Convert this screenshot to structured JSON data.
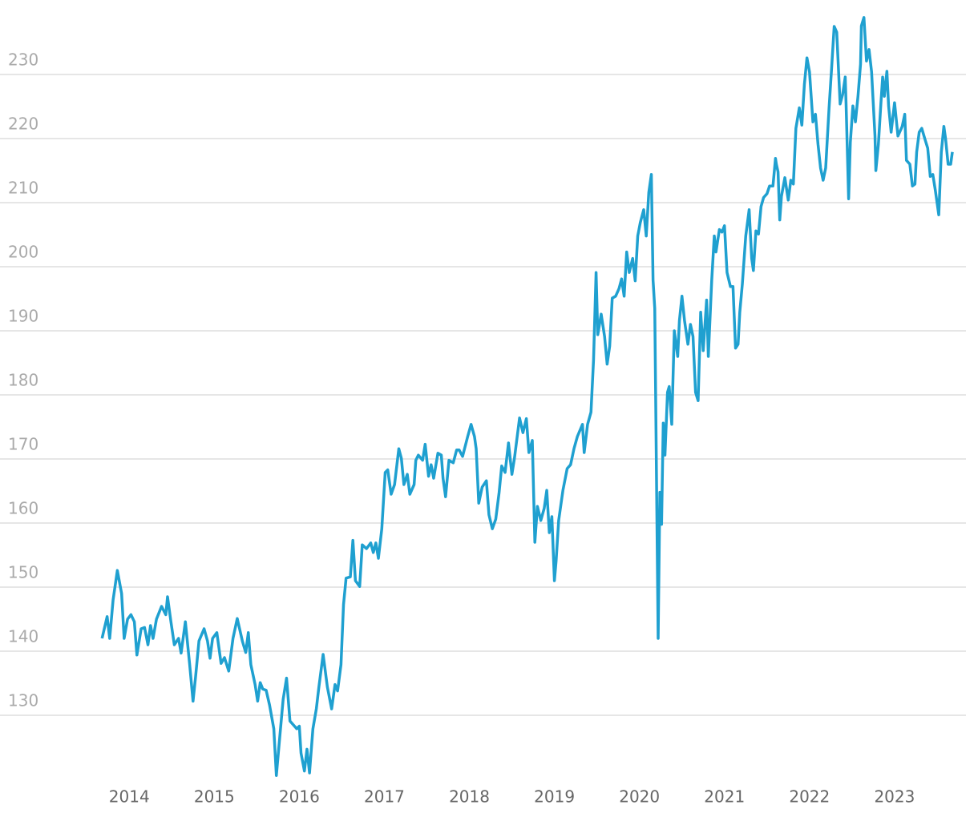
{
  "chart_data": {
    "type": "line",
    "color": "#1fa0d0",
    "grid": true,
    "xlim": [
      2012.48,
      2023.84
    ],
    "ylim": [
      120,
      240
    ],
    "xticks": [
      2014,
      2015,
      2016,
      2017,
      2018,
      2019,
      2020,
      2021,
      2022,
      2023
    ],
    "yticks": [
      130,
      140,
      150,
      160,
      170,
      180,
      190,
      200,
      210,
      220,
      230
    ],
    "x": [
      2013.68,
      2013.74,
      2013.77,
      2013.81,
      2013.86,
      2013.91,
      2013.94,
      2013.98,
      2014.02,
      2014.06,
      2014.09,
      2014.14,
      2014.18,
      2014.22,
      2014.25,
      2014.28,
      2014.32,
      2014.38,
      2014.43,
      2014.45,
      2014.49,
      2014.53,
      2014.58,
      2014.61,
      2014.66,
      2014.71,
      2014.75,
      2014.78,
      2014.82,
      2014.88,
      2014.92,
      2014.95,
      2014.98,
      2015.03,
      2015.08,
      2015.12,
      2015.17,
      2015.22,
      2015.27,
      2015.33,
      2015.37,
      2015.4,
      2015.43,
      2015.48,
      2015.51,
      2015.54,
      2015.57,
      2015.61,
      2015.65,
      2015.7,
      2015.73,
      2015.77,
      2015.81,
      2015.85,
      2015.89,
      2015.93,
      2015.97,
      2016.0,
      2016.02,
      2016.06,
      2016.09,
      2016.12,
      2016.16,
      2016.2,
      2016.23,
      2016.28,
      2016.33,
      2016.38,
      2016.42,
      2016.45,
      2016.49,
      2016.52,
      2016.55,
      2016.6,
      2016.63,
      2016.66,
      2016.71,
      2016.74,
      2016.79,
      2016.84,
      2016.87,
      2016.9,
      2016.93,
      2016.97,
      2017.01,
      2017.04,
      2017.08,
      2017.12,
      2017.17,
      2017.2,
      2017.23,
      2017.27,
      2017.3,
      2017.35,
      2017.37,
      2017.4,
      2017.45,
      2017.48,
      2017.52,
      2017.55,
      2017.58,
      2017.63,
      2017.67,
      2017.69,
      2017.72,
      2017.76,
      2017.81,
      2017.85,
      2017.88,
      2017.92,
      2017.98,
      2018.02,
      2018.06,
      2018.08,
      2018.11,
      2018.15,
      2018.2,
      2018.23,
      2018.27,
      2018.31,
      2018.35,
      2018.38,
      2018.42,
      2018.46,
      2018.5,
      2018.53,
      2018.59,
      2018.63,
      2018.67,
      2018.7,
      2018.74,
      2018.77,
      2018.8,
      2018.84,
      2018.88,
      2018.91,
      2018.94,
      2018.97,
      2019.0,
      2019.02,
      2019.05,
      2019.1,
      2019.15,
      2019.19,
      2019.23,
      2019.27,
      2019.33,
      2019.35,
      2019.39,
      2019.43,
      2019.46,
      2019.49,
      2019.51,
      2019.55,
      2019.59,
      2019.62,
      2019.65,
      2019.68,
      2019.72,
      2019.76,
      2019.79,
      2019.82,
      2019.85,
      2019.88,
      2019.92,
      2019.95,
      2019.98,
      2020.01,
      2020.05,
      2020.08,
      2020.11,
      2020.14,
      2020.16,
      2020.18,
      2020.22,
      2020.24,
      2020.26,
      2020.28,
      2020.3,
      2020.33,
      2020.35,
      2020.38,
      2020.41,
      2020.45,
      2020.47,
      2020.5,
      2020.53,
      2020.57,
      2020.6,
      2020.63,
      2020.66,
      2020.69,
      2020.72,
      2020.75,
      2020.79,
      2020.81,
      2020.85,
      2020.88,
      2020.9,
      2020.94,
      2020.97,
      2021.0,
      2021.03,
      2021.07,
      2021.1,
      2021.13,
      2021.16,
      2021.18,
      2021.21,
      2021.25,
      2021.29,
      2021.32,
      2021.34,
      2021.37,
      2021.4,
      2021.43,
      2021.46,
      2021.5,
      2021.53,
      2021.57,
      2021.6,
      2021.61,
      2021.63,
      2021.65,
      2021.67,
      2021.71,
      2021.75,
      2021.78,
      2021.81,
      2021.84,
      2021.88,
      2021.91,
      2021.94,
      2021.97,
      2022.0,
      2022.04,
      2022.07,
      2022.1,
      2022.13,
      2022.16,
      2022.19,
      2022.23,
      2022.26,
      2022.29,
      2022.32,
      2022.36,
      2022.39,
      2022.42,
      2022.43,
      2022.46,
      2022.48,
      2022.51,
      2022.54,
      2022.57,
      2022.6,
      2022.61,
      2022.64,
      2022.67,
      2022.7,
      2022.73,
      2022.77,
      2022.78,
      2022.81,
      2022.84,
      2022.86,
      2022.88,
      2022.91,
      2022.93,
      2022.96,
      2023.0,
      2023.04,
      2023.09,
      2023.12,
      2023.14,
      2023.18,
      2023.21,
      2023.24,
      2023.26,
      2023.29,
      2023.32,
      2023.36,
      2023.39,
      2023.42,
      2023.45,
      2023.48,
      2023.52,
      2023.55,
      2023.58,
      2023.6,
      2023.63,
      2023.66,
      2023.68
    ],
    "values": [
      142,
      145.4,
      142,
      148,
      152.6,
      149,
      142,
      145,
      145.7,
      144.6,
      139.4,
      143.5,
      143.7,
      141,
      144,
      142,
      145,
      147,
      145.7,
      148.5,
      144.6,
      141,
      142,
      139.7,
      144.6,
      138,
      132.2,
      136,
      141.6,
      143.5,
      141.6,
      138.9,
      142,
      142.9,
      138.1,
      139,
      136.9,
      142,
      145.1,
      141.6,
      139.8,
      142.9,
      137.9,
      134.8,
      132.2,
      135.1,
      134.1,
      133.9,
      131.6,
      127.9,
      120.6,
      126.6,
      132.5,
      135.8,
      129.1,
      128.5,
      127.9,
      128.3,
      124.1,
      121.3,
      124.7,
      121,
      127.9,
      131,
      134.4,
      139.5,
      134.4,
      131,
      134.8,
      133.8,
      137.9,
      147.3,
      151.4,
      151.6,
      157.3,
      151,
      150.1,
      156.6,
      156,
      156.9,
      155.4,
      156.9,
      154.5,
      159.1,
      167.9,
      168.3,
      164.5,
      166,
      171.6,
      170.1,
      166,
      167.6,
      164.5,
      166,
      169.8,
      170.6,
      169.8,
      172.3,
      167.3,
      169.1,
      167,
      170.9,
      170.6,
      167,
      164.1,
      169.8,
      169.4,
      171.4,
      171.4,
      170.4,
      173.5,
      175.4,
      173.5,
      171.6,
      163.1,
      165.6,
      166.6,
      161.3,
      159.1,
      160.6,
      164.8,
      168.9,
      167.9,
      172.5,
      167.6,
      170.1,
      176.4,
      174.1,
      176.3,
      171,
      172.9,
      157,
      162.6,
      160.4,
      162.3,
      165.1,
      158.5,
      161,
      151,
      154.1,
      160.4,
      165.1,
      168.5,
      169.1,
      171.6,
      173.5,
      175.4,
      171,
      175.4,
      177.3,
      185.4,
      199.1,
      189.4,
      192.6,
      189.1,
      184.8,
      187.6,
      195.1,
      195.4,
      196.6,
      198.1,
      195.4,
      202.3,
      199.1,
      201.3,
      197.8,
      204.8,
      206.9,
      208.9,
      204.8,
      211.6,
      214.4,
      197.9,
      193.5,
      142,
      164.8,
      159.8,
      175.6,
      170.6,
      180.4,
      181.3,
      175.4,
      190,
      186,
      191.6,
      195.4,
      191.6,
      187.9,
      191,
      189.1,
      180.4,
      179.1,
      192.9,
      186.9,
      194.8,
      186,
      197.9,
      204.8,
      202.3,
      205.8,
      205.4,
      206.4,
      199.1,
      196.9,
      196.9,
      187.3,
      187.9,
      192.9,
      197.3,
      204.8,
      208.9,
      201.3,
      199.4,
      205.6,
      205.1,
      209.4,
      210.8,
      211.4,
      212.6,
      212.6,
      216.9,
      216,
      214.8,
      207.3,
      211,
      213.9,
      210.4,
      213.5,
      212.9,
      221.6,
      224.8,
      222.1,
      228.5,
      232.6,
      230.4,
      222.6,
      223.8,
      219.1,
      215.4,
      213.5,
      215.4,
      224.8,
      231,
      237.5,
      236.6,
      225.4,
      226.9,
      229.6,
      225.4,
      210.6,
      219.4,
      225.1,
      222.6,
      226.6,
      231.6,
      237.6,
      238.9,
      232.1,
      233.9,
      230.4,
      220.4,
      215,
      219.1,
      225.6,
      229.6,
      226.6,
      230.5,
      225.1,
      221,
      225.6,
      220.4,
      221.9,
      223.8,
      216.6,
      216,
      212.6,
      212.9,
      217.9,
      221,
      221.6,
      219.8,
      218.5,
      214.1,
      214.4,
      211.9,
      208.1,
      217.9,
      221.9,
      220,
      216,
      216,
      217.9
    ]
  }
}
